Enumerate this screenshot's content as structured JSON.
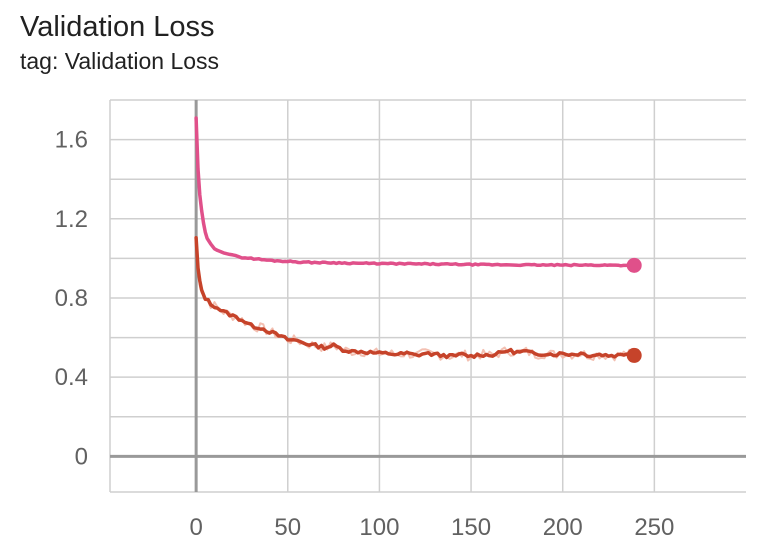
{
  "title": "Validation Loss",
  "subtitle": "tag: Validation Loss",
  "colors": {
    "series_top": "#e0508a",
    "series_bottom": "#c6432a",
    "series_bottom_raw": "#f2b9aa",
    "grid": "#cfcfcf",
    "axis": "#999999"
  },
  "chart_data": {
    "type": "line",
    "title": "Validation Loss",
    "subtitle": "tag: Validation Loss",
    "xlabel": "",
    "ylabel": "",
    "xlim": [
      -47,
      300
    ],
    "ylim": [
      -0.18,
      1.8
    ],
    "x_ticks": [
      0,
      50,
      100,
      150,
      200,
      250
    ],
    "y_ticks": [
      0,
      0.4,
      0.8,
      1.2,
      1.6
    ],
    "x_tick_labels": [
      "0",
      "50",
      "100",
      "150",
      "200",
      "250"
    ],
    "y_tick_labels": [
      "0",
      "0.4",
      "0.8",
      "1.2",
      "1.6"
    ],
    "grid": true,
    "legend": "none",
    "series": [
      {
        "x": [
          0,
          1,
          2,
          3,
          4,
          5,
          6,
          8,
          10,
          15,
          20,
          25,
          30,
          40,
          50,
          60,
          75,
          90,
          100,
          120,
          140,
          160,
          180,
          200,
          220,
          239
        ],
        "values": [
          1.71,
          1.45,
          1.32,
          1.24,
          1.18,
          1.13,
          1.1,
          1.07,
          1.05,
          1.03,
          1.015,
          1.005,
          1.0,
          0.99,
          0.985,
          0.98,
          0.978,
          0.975,
          0.974,
          0.972,
          0.97,
          0.968,
          0.967,
          0.966,
          0.966,
          0.965
        ],
        "color": "#e0508a"
      },
      {
        "x": [
          0,
          1,
          2,
          3,
          5,
          8,
          10,
          15,
          20,
          25,
          30,
          35,
          40,
          45,
          50,
          55,
          60,
          65,
          70,
          75,
          80,
          85,
          90,
          95,
          100,
          105,
          110,
          115,
          120,
          125,
          130,
          135,
          140,
          145,
          150,
          155,
          160,
          165,
          170,
          175,
          180,
          185,
          190,
          195,
          200,
          205,
          210,
          215,
          220,
          225,
          230,
          235,
          239
        ],
        "values": [
          1.1,
          0.95,
          0.88,
          0.84,
          0.8,
          0.77,
          0.76,
          0.73,
          0.71,
          0.69,
          0.66,
          0.65,
          0.63,
          0.61,
          0.59,
          0.585,
          0.57,
          0.56,
          0.55,
          0.56,
          0.54,
          0.53,
          0.53,
          0.525,
          0.52,
          0.52,
          0.515,
          0.52,
          0.51,
          0.52,
          0.515,
          0.51,
          0.505,
          0.515,
          0.505,
          0.515,
          0.51,
          0.52,
          0.535,
          0.525,
          0.53,
          0.515,
          0.52,
          0.515,
          0.52,
          0.515,
          0.52,
          0.51,
          0.515,
          0.51,
          0.51,
          0.52,
          0.51
        ],
        "color": "#c6432a"
      }
    ]
  }
}
